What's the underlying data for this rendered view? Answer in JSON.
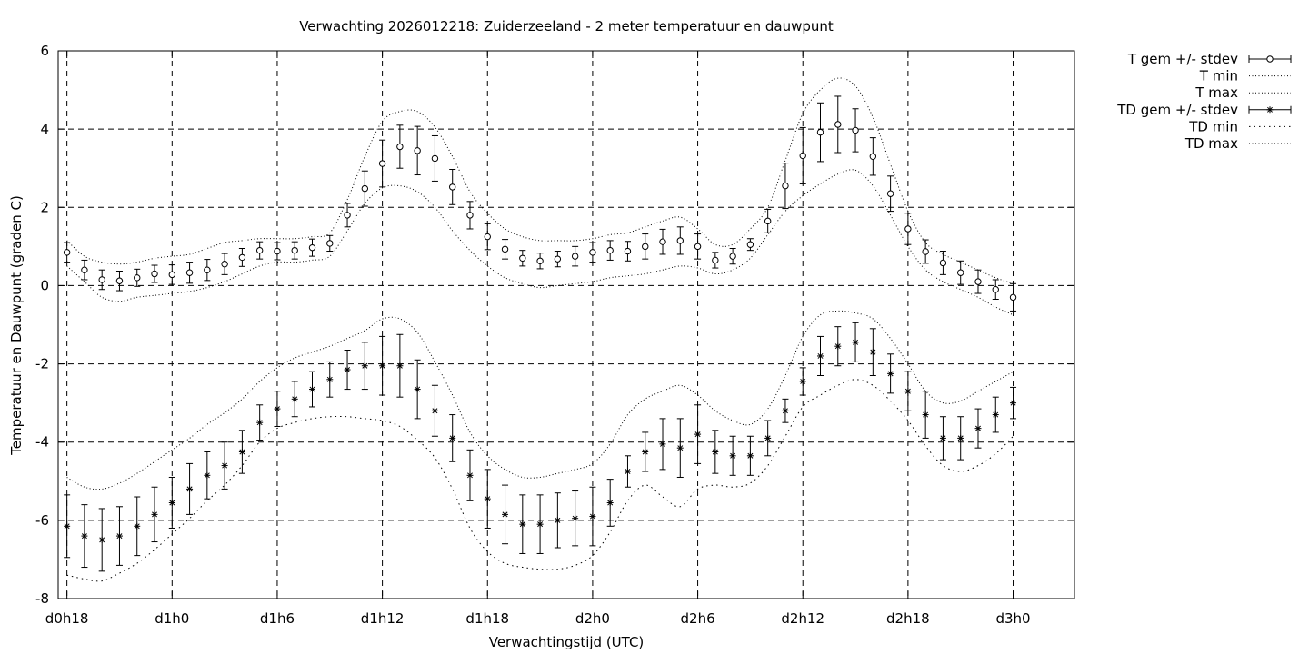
{
  "chart_data": {
    "type": "line",
    "title": "Verwachting 2026012218: Zuiderzeeland - 2 meter temperatuur en dauwpunt",
    "xlabel": "Verwachtingstijd (UTC)",
    "ylabel": "Temperatuur en Dauwpunt (graden C)",
    "ylim": [
      -8,
      6
    ],
    "yticks": [
      -8,
      -6,
      -4,
      -2,
      0,
      2,
      4,
      6
    ],
    "xlim": [
      -0.5,
      57.5
    ],
    "xticks": [
      {
        "x": 0,
        "label": "d0h18"
      },
      {
        "x": 6,
        "label": "d1h0"
      },
      {
        "x": 12,
        "label": "d1h6"
      },
      {
        "x": 18,
        "label": "d1h12"
      },
      {
        "x": 24,
        "label": "d1h18"
      },
      {
        "x": 30,
        "label": "d2h0"
      },
      {
        "x": 36,
        "label": "d2h6"
      },
      {
        "x": 42,
        "label": "d2h12"
      },
      {
        "x": 48,
        "label": "d2h18"
      },
      {
        "x": 54,
        "label": "d3h0"
      }
    ],
    "grid": true,
    "legend": "outside-top-right",
    "x": [
      0,
      1,
      2,
      3,
      4,
      5,
      6,
      7,
      8,
      9,
      10,
      11,
      12,
      13,
      14,
      15,
      16,
      17,
      18,
      19,
      20,
      21,
      22,
      23,
      24,
      25,
      26,
      27,
      28,
      29,
      30,
      31,
      32,
      33,
      34,
      35,
      36,
      37,
      38,
      39,
      40,
      41,
      42,
      43,
      44,
      45,
      46,
      47,
      48,
      49,
      50,
      51,
      52,
      53,
      54
    ],
    "series": [
      {
        "name": "T gem +/- stdev",
        "kind": "errorbar",
        "marker": "circle",
        "mean": [
          0.85,
          0.4,
          0.15,
          0.12,
          0.2,
          0.3,
          0.28,
          0.33,
          0.4,
          0.55,
          0.72,
          0.9,
          0.88,
          0.9,
          0.97,
          1.08,
          1.8,
          2.48,
          3.12,
          3.55,
          3.45,
          3.25,
          2.52,
          1.8,
          1.25,
          0.93,
          0.7,
          0.63,
          0.68,
          0.75,
          0.85,
          0.9,
          0.88,
          1.0,
          1.12,
          1.15,
          1.0,
          0.65,
          0.75,
          1.05,
          1.65,
          2.55,
          3.32,
          3.92,
          4.12,
          3.97,
          3.3,
          2.35,
          1.45,
          0.87,
          0.58,
          0.33,
          0.1,
          -0.1,
          -0.3
        ],
        "stdev": [
          0.25,
          0.25,
          0.25,
          0.25,
          0.22,
          0.22,
          0.25,
          0.27,
          0.27,
          0.27,
          0.23,
          0.22,
          0.22,
          0.22,
          0.22,
          0.2,
          0.3,
          0.45,
          0.6,
          0.55,
          0.62,
          0.58,
          0.45,
          0.35,
          0.33,
          0.25,
          0.2,
          0.2,
          0.2,
          0.25,
          0.25,
          0.25,
          0.25,
          0.32,
          0.32,
          0.35,
          0.32,
          0.2,
          0.2,
          0.15,
          0.3,
          0.58,
          0.72,
          0.75,
          0.72,
          0.55,
          0.48,
          0.45,
          0.4,
          0.3,
          0.3,
          0.3,
          0.3,
          0.25,
          0.35
        ]
      },
      {
        "name": "T min",
        "kind": "dotted",
        "values": [
          0.5,
          0.1,
          -0.3,
          -0.4,
          -0.3,
          -0.25,
          -0.2,
          -0.15,
          -0.05,
          0.1,
          0.3,
          0.5,
          0.6,
          0.6,
          0.65,
          0.75,
          1.4,
          2.1,
          2.5,
          2.55,
          2.4,
          2.0,
          1.4,
          0.9,
          0.5,
          0.2,
          0.05,
          -0.05,
          0.0,
          0.05,
          0.1,
          0.2,
          0.25,
          0.3,
          0.4,
          0.5,
          0.45,
          0.3,
          0.4,
          0.7,
          1.3,
          1.9,
          2.3,
          2.6,
          2.85,
          2.95,
          2.55,
          1.8,
          1.0,
          0.4,
          0.1,
          -0.1,
          -0.3,
          -0.55,
          -0.75
        ]
      },
      {
        "name": "T max",
        "kind": "dotted",
        "values": [
          1.15,
          0.75,
          0.6,
          0.55,
          0.6,
          0.7,
          0.75,
          0.8,
          0.95,
          1.1,
          1.15,
          1.2,
          1.2,
          1.2,
          1.25,
          1.35,
          2.2,
          3.3,
          4.2,
          4.45,
          4.45,
          4.05,
          3.3,
          2.4,
          1.85,
          1.45,
          1.25,
          1.15,
          1.15,
          1.15,
          1.2,
          1.3,
          1.35,
          1.5,
          1.65,
          1.75,
          1.45,
          1.05,
          1.05,
          1.45,
          2.0,
          3.2,
          4.4,
          5.0,
          5.3,
          5.1,
          4.3,
          3.1,
          1.9,
          1.1,
          0.8,
          0.6,
          0.4,
          0.2,
          0.05
        ]
      },
      {
        "name": "TD gem +/- stdev",
        "kind": "errorbar",
        "marker": "star",
        "mean": [
          -6.15,
          -6.4,
          -6.5,
          -6.4,
          -6.15,
          -5.85,
          -5.55,
          -5.2,
          -4.85,
          -4.6,
          -4.25,
          -3.5,
          -3.15,
          -2.9,
          -2.65,
          -2.4,
          -2.15,
          -2.05,
          -2.05,
          -2.05,
          -2.65,
          -3.2,
          -3.9,
          -4.85,
          -5.45,
          -5.85,
          -6.1,
          -6.1,
          -6.0,
          -5.95,
          -5.9,
          -5.55,
          -4.75,
          -4.25,
          -4.05,
          -4.15,
          -3.8,
          -4.25,
          -4.35,
          -4.35,
          -3.9,
          -3.2,
          -2.45,
          -1.8,
          -1.55,
          -1.45,
          -1.7,
          -2.25,
          -2.7,
          -3.3,
          -3.9,
          -3.9,
          -3.65,
          -3.3,
          -3.0
        ],
        "stdev": [
          0.8,
          0.8,
          0.8,
          0.75,
          0.75,
          0.7,
          0.65,
          0.65,
          0.6,
          0.6,
          0.55,
          0.45,
          0.45,
          0.45,
          0.45,
          0.45,
          0.5,
          0.6,
          0.75,
          0.8,
          0.75,
          0.65,
          0.6,
          0.65,
          0.75,
          0.75,
          0.75,
          0.75,
          0.7,
          0.7,
          0.75,
          0.6,
          0.4,
          0.5,
          0.65,
          0.75,
          0.75,
          0.55,
          0.5,
          0.5,
          0.45,
          0.3,
          0.35,
          0.5,
          0.5,
          0.5,
          0.6,
          0.5,
          0.5,
          0.6,
          0.55,
          0.55,
          0.5,
          0.45,
          0.4
        ]
      },
      {
        "name": "TD min",
        "kind": "dotted",
        "values": [
          -7.4,
          -7.5,
          -7.55,
          -7.35,
          -7.1,
          -6.75,
          -6.35,
          -5.95,
          -5.5,
          -5.1,
          -4.6,
          -4.0,
          -3.65,
          -3.5,
          -3.4,
          -3.35,
          -3.35,
          -3.4,
          -3.45,
          -3.6,
          -3.95,
          -4.4,
          -5.2,
          -6.2,
          -6.8,
          -7.1,
          -7.2,
          -7.25,
          -7.25,
          -7.15,
          -6.9,
          -6.3,
          -5.5,
          -5.1,
          -5.4,
          -5.65,
          -5.2,
          -5.1,
          -5.15,
          -5.05,
          -4.6,
          -3.85,
          -3.1,
          -2.8,
          -2.55,
          -2.4,
          -2.55,
          -2.95,
          -3.45,
          -4.1,
          -4.6,
          -4.75,
          -4.6,
          -4.3,
          -3.85
        ]
      },
      {
        "name": "TD max",
        "kind": "dotted",
        "values": [
          -4.9,
          -5.15,
          -5.2,
          -5.05,
          -4.8,
          -4.5,
          -4.2,
          -3.9,
          -3.55,
          -3.25,
          -2.9,
          -2.45,
          -2.1,
          -1.85,
          -1.7,
          -1.55,
          -1.35,
          -1.15,
          -0.85,
          -0.85,
          -1.2,
          -1.95,
          -2.8,
          -3.75,
          -4.35,
          -4.7,
          -4.9,
          -4.9,
          -4.8,
          -4.7,
          -4.55,
          -4.05,
          -3.3,
          -2.9,
          -2.7,
          -2.55,
          -2.8,
          -3.2,
          -3.45,
          -3.55,
          -3.15,
          -2.3,
          -1.3,
          -0.75,
          -0.65,
          -0.7,
          -0.85,
          -1.35,
          -2.0,
          -2.7,
          -3.0,
          -2.95,
          -2.7,
          -2.45,
          -2.2
        ]
      }
    ]
  }
}
